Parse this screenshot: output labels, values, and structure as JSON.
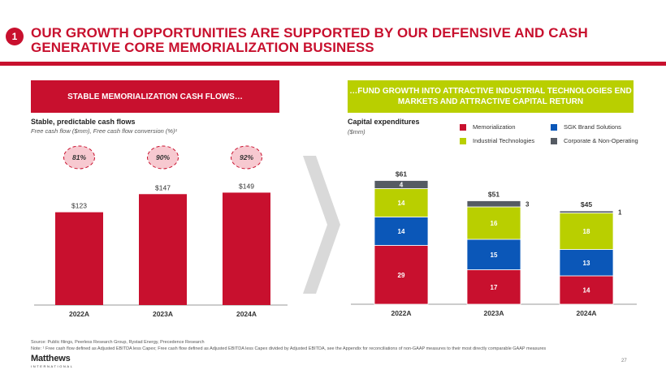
{
  "slide": {
    "badge_number": "1",
    "title": "OUR GROWTH OPPORTUNITIES ARE SUPPORTED BY OUR DEFENSIVE AND CASH GENERATIVE CORE MEMORIALIZATION BUSINESS",
    "left_banner": "STABLE MEMORIALIZATION CASH FLOWS…",
    "right_banner": "…FUND GROWTH INTO ATTRACTIVE INDUSTRIAL TECHNOLOGIES END MARKETS AND ATTRACTIVE CAPITAL RETURN",
    "left_subtitle": "Stable, predictable cash flows",
    "left_note": "Free cash flow ($mm), Free cash flow conversion (%)¹",
    "right_subtitle": "Capital expenditures",
    "right_note": "($mm)",
    "source": "Source: Public filings, Peerless Research Group, Rystad Energy, Precedence Research",
    "note": "Note: ¹ Free cash flow defined as Adjusted EBITDA less Capex; Free cash flow defined as Adjusted EBITDA less Capex divided by Adjusted EBITDA, see the Appendix for reconciliations of non-GAAP measures to their most directly comparable GAAP measures",
    "logo_main": "Matthews",
    "logo_sub": "INTERNATIONAL",
    "page_number": "27"
  },
  "colors": {
    "red": "#c8102e",
    "green": "#b9cf00",
    "blue": "#0b57b8",
    "gray": "#555b63",
    "conversion_fill": "#f7c9d0"
  },
  "chart_data": [
    {
      "type": "bar",
      "title": "Stable, predictable cash flows",
      "categories": [
        "2022A",
        "2023A",
        "2024A"
      ],
      "values": [
        123,
        147,
        149
      ],
      "value_labels": [
        "$123",
        "$147",
        "$149"
      ],
      "conversion_labels": [
        "81%",
        "90%",
        "92%"
      ],
      "conversion_values": [
        81,
        90,
        92
      ],
      "ylabel": "Free cash flow ($mm)",
      "ylim": [
        0,
        200
      ],
      "grid": false
    },
    {
      "type": "bar",
      "stacked": true,
      "title": "Capital expenditures",
      "categories": [
        "2022A",
        "2023A",
        "2024A"
      ],
      "totals": [
        61,
        51,
        45
      ],
      "total_labels": [
        "$61",
        "$51",
        "$45"
      ],
      "series": [
        {
          "name": "Memorialization",
          "color_key": "red",
          "values": [
            29,
            17,
            14
          ]
        },
        {
          "name": "SGK Brand Solutions",
          "color_key": "blue",
          "values": [
            14,
            15,
            13
          ]
        },
        {
          "name": "Industrial Technologies",
          "color_key": "green",
          "values": [
            14,
            16,
            18
          ]
        },
        {
          "name": "Corporate & Non-Operating",
          "color_key": "gray",
          "values": [
            4,
            3,
            1
          ]
        }
      ],
      "legend_order": [
        "Memorialization",
        "SGK Brand Solutions",
        "Industrial Technologies",
        "Corporate & Non-Operating"
      ],
      "ylabel": "($mm)",
      "ylim": [
        0,
        70
      ],
      "grid": false
    }
  ]
}
